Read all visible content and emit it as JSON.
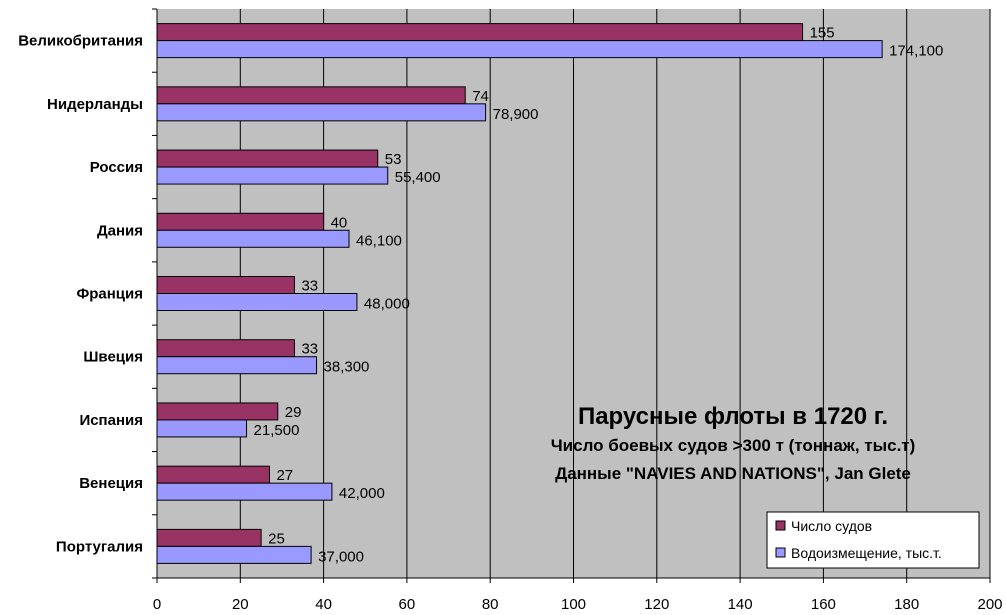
{
  "chart_data": {
    "type": "bar",
    "orientation": "horizontal",
    "title": "Парусные флоты в 1720 г.",
    "subtitle_lines": [
      "Число боевых судов >300 т (тоннаж, тыс.т)",
      "Данные \"NAVIES AND NATIONS\", Jan Glete"
    ],
    "categories": [
      "Великобритания",
      "Нидерланды",
      "Россия",
      "Дания",
      "Франция",
      "Швеция",
      "Испания",
      "Венеция",
      "Португалия"
    ],
    "series": [
      {
        "name": "Число судов",
        "values": [
          155,
          74,
          53,
          40,
          33,
          33,
          29,
          27,
          25
        ],
        "labels": [
          "155",
          "74",
          "53",
          "40",
          "33",
          "33",
          "29",
          "27",
          "25"
        ]
      },
      {
        "name": "Водоизмещение, тыс.т.",
        "values": [
          174.1,
          78.9,
          55.4,
          46.1,
          48.0,
          38.3,
          21.5,
          42.0,
          37.0
        ],
        "labels": [
          "174,100",
          "78,900",
          "55,400",
          "46,100",
          "48,000",
          "38,300",
          "21,500",
          "42,000",
          "37,000"
        ]
      }
    ],
    "xlim": [
      0,
      200
    ],
    "xticks": [
      0,
      20,
      40,
      60,
      80,
      100,
      120,
      140,
      160,
      180,
      200
    ],
    "xlabel": "",
    "ylabel": "",
    "grid": "vertical",
    "legend_position": "bottom-right",
    "colors": {
      "plot_background": "#c0c0c0",
      "series1": "#993366",
      "series2": "#9999ff",
      "gridline": "#000000",
      "axis": "#000000"
    }
  }
}
